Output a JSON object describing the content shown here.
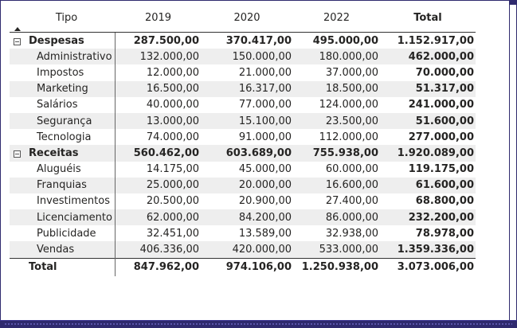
{
  "header": {
    "tipo": "Tipo",
    "years": [
      "2019",
      "2020",
      "2022"
    ],
    "total": "Total"
  },
  "groups": [
    {
      "name": "Despesas",
      "values": [
        "287.500,00",
        "370.417,00",
        "495.000,00"
      ],
      "total": "1.152.917,00",
      "rows": [
        {
          "name": "Administrativo",
          "values": [
            "132.000,00",
            "150.000,00",
            "180.000,00"
          ],
          "total": "462.000,00"
        },
        {
          "name": "Impostos",
          "values": [
            "12.000,00",
            "21.000,00",
            "37.000,00"
          ],
          "total": "70.000,00"
        },
        {
          "name": "Marketing",
          "values": [
            "16.500,00",
            "16.317,00",
            "18.500,00"
          ],
          "total": "51.317,00"
        },
        {
          "name": "Salários",
          "values": [
            "40.000,00",
            "77.000,00",
            "124.000,00"
          ],
          "total": "241.000,00"
        },
        {
          "name": "Segurança",
          "values": [
            "13.000,00",
            "15.100,00",
            "23.500,00"
          ],
          "total": "51.600,00"
        },
        {
          "name": "Tecnologia",
          "values": [
            "74.000,00",
            "91.000,00",
            "112.000,00"
          ],
          "total": "277.000,00"
        }
      ]
    },
    {
      "name": "Receitas",
      "values": [
        "560.462,00",
        "603.689,00",
        "755.938,00"
      ],
      "total": "1.920.089,00",
      "rows": [
        {
          "name": "Aluguéis",
          "values": [
            "14.175,00",
            "45.000,00",
            "60.000,00"
          ],
          "total": "119.175,00"
        },
        {
          "name": "Franquias",
          "values": [
            "25.000,00",
            "20.000,00",
            "16.600,00"
          ],
          "total": "61.600,00"
        },
        {
          "name": "Investimentos",
          "values": [
            "20.500,00",
            "20.900,00",
            "27.400,00"
          ],
          "total": "68.800,00"
        },
        {
          "name": "Licenciamento",
          "values": [
            "62.000,00",
            "84.200,00",
            "86.000,00"
          ],
          "total": "232.200,00"
        },
        {
          "name": "Publicidade",
          "values": [
            "32.451,00",
            "13.589,00",
            "32.938,00"
          ],
          "total": "78.978,00"
        },
        {
          "name": "Vendas",
          "values": [
            "406.336,00",
            "420.000,00",
            "533.000,00"
          ],
          "total": "1.359.336,00"
        }
      ]
    }
  ],
  "grand_total": {
    "label": "Total",
    "values": [
      "847.962,00",
      "974.106,00",
      "1.250.938,00"
    ],
    "total": "3.073.006,00"
  },
  "colors": {
    "frame": "#2f2a6e",
    "stripe": "#eeeeee",
    "text": "#252423"
  },
  "icons": {
    "sort": "sort-ascending-icon",
    "expander": "collapse-minus-icon"
  }
}
